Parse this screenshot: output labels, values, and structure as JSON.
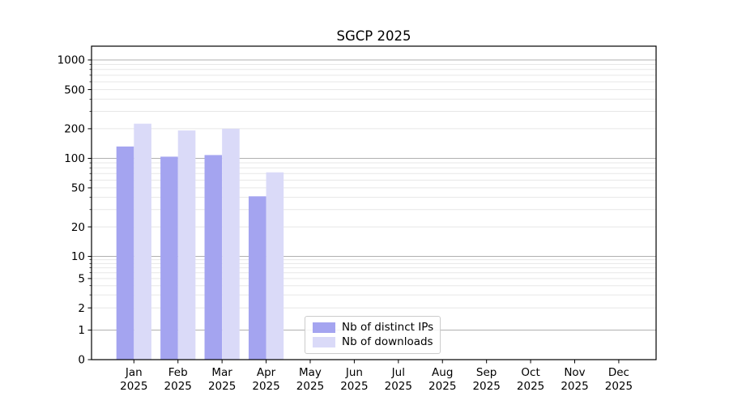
{
  "title": "SGCP 2025",
  "chart_data": {
    "type": "bar",
    "title": "SGCP 2025",
    "categories": [
      "Jan",
      "Feb",
      "Mar",
      "Apr",
      "May",
      "Jun",
      "Jul",
      "Aug",
      "Sep",
      "Oct",
      "Nov",
      "Dec"
    ],
    "category_year": "2025",
    "series": [
      {
        "name": "Nb of distinct IPs",
        "color": "#a4a4f0",
        "values": [
          132,
          104,
          108,
          41,
          0,
          0,
          0,
          0,
          0,
          0,
          0,
          0
        ]
      },
      {
        "name": "Nb of downloads",
        "color": "#dadaf8",
        "values": [
          225,
          192,
          200,
          72,
          0,
          0,
          0,
          0,
          0,
          0,
          0,
          0
        ]
      }
    ],
    "xlabel": "",
    "ylabel": "",
    "yscale": "log-with-zero-baseline",
    "ylim": [
      0,
      1380
    ],
    "ytick_labels": [
      0,
      1,
      2,
      5,
      10,
      20,
      50,
      100,
      200,
      500,
      1000
    ],
    "grid": "horizontal major (dark) + log minor (light)",
    "legend_position": "inside bottom, left of center"
  },
  "colors": {
    "background": "#ffffff",
    "spine": "#000000",
    "grid_major": "#b0b0b0",
    "grid_minor": "#e7e7e7",
    "text": "#000000",
    "legend_border": "#cccccc"
  }
}
